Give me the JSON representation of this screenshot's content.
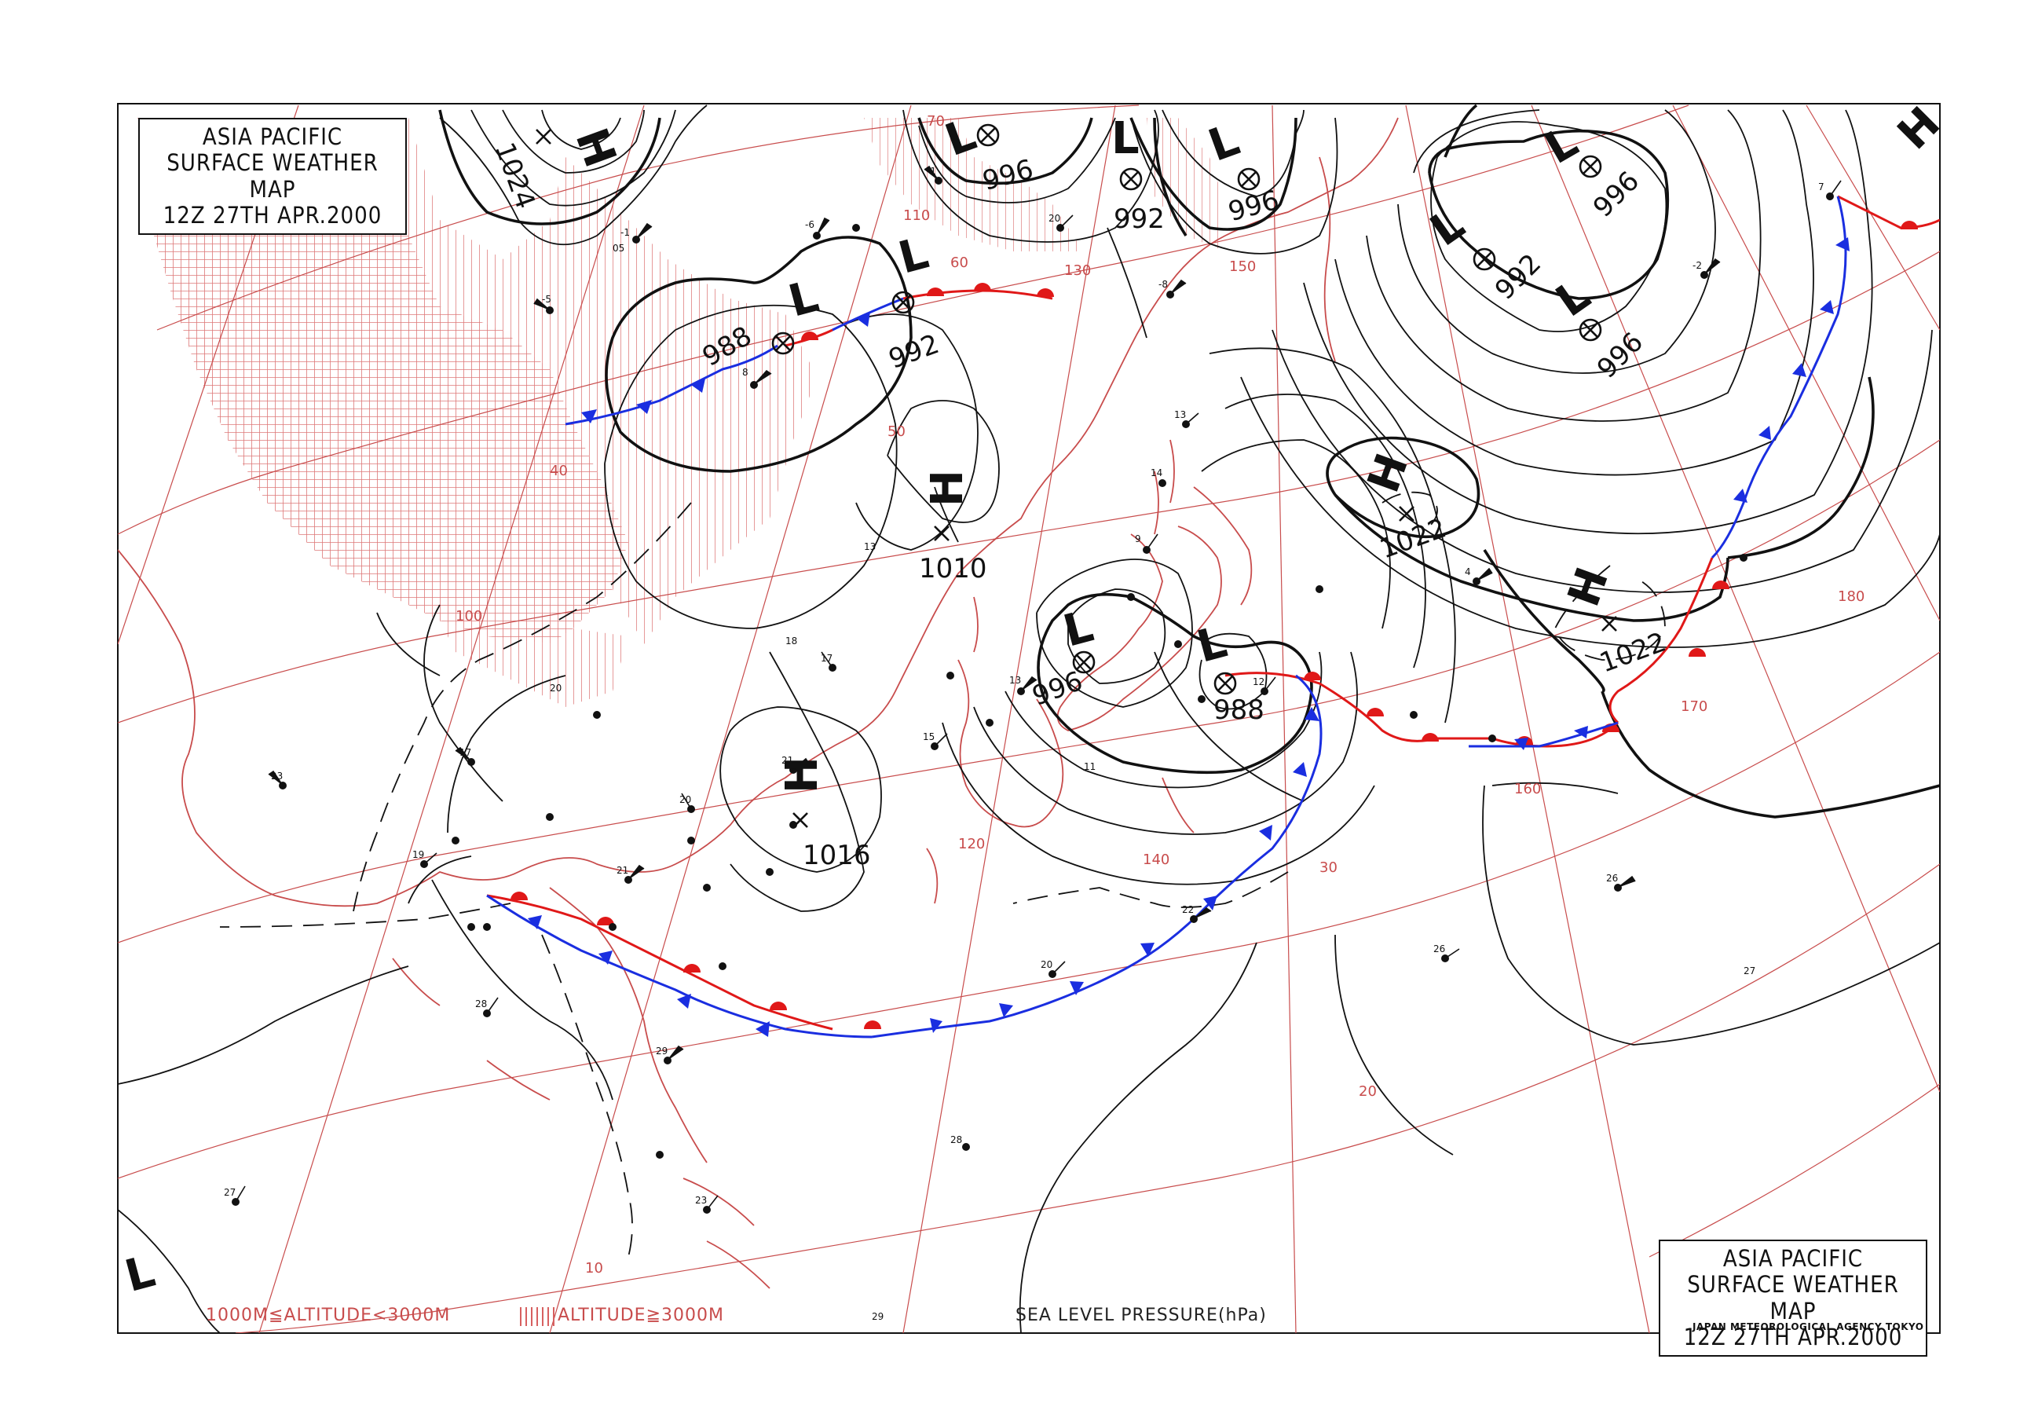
{
  "title": {
    "line1": "ASIA PACIFIC",
    "line2": "SURFACE WEATHER MAP",
    "line3": "12Z 27TH APR.2000"
  },
  "agency": "JAPAN METEOROLOGICAL AGENCY TOKYO",
  "legend": {
    "hatch_low": "1000M≦ALTITUDE<3000M",
    "hatch_high": "ALTITUDE≧3000M",
    "pressure_label": "SEA LEVEL PRESSURE(hPa)"
  },
  "pressure_centers": [
    {
      "type": "H",
      "value": "1024"
    },
    {
      "type": "L",
      "value": "996"
    },
    {
      "type": "L",
      "value": "992"
    },
    {
      "type": "L",
      "value": "996"
    },
    {
      "type": "L",
      "value": "988"
    },
    {
      "type": "L",
      "value": "992"
    },
    {
      "type": "L",
      "value": "996"
    },
    {
      "type": "L",
      "value": "992"
    },
    {
      "type": "L",
      "value": "996"
    },
    {
      "type": "H",
      "value": "1010"
    },
    {
      "type": "H",
      "value": "1016"
    },
    {
      "type": "L",
      "value": "996"
    },
    {
      "type": "L",
      "value": "988"
    },
    {
      "type": "H",
      "value": "1022"
    },
    {
      "type": "H",
      "value": "1022"
    },
    {
      "type": "H",
      "value": ""
    },
    {
      "type": "L",
      "value": ""
    }
  ],
  "grid_labels": {
    "latitudes": [
      "70",
      "60",
      "50",
      "40",
      "30",
      "20",
      "10"
    ],
    "longitudes": [
      "100",
      "110",
      "120",
      "130",
      "140",
      "150",
      "160",
      "170",
      "180"
    ]
  },
  "colors": {
    "isobar": "#111111",
    "grid": "#c84c4c",
    "warm_front": "#e01818",
    "cold_front": "#1a2ee0",
    "coast": "#c84c4c",
    "hatch": "#d76060"
  }
}
